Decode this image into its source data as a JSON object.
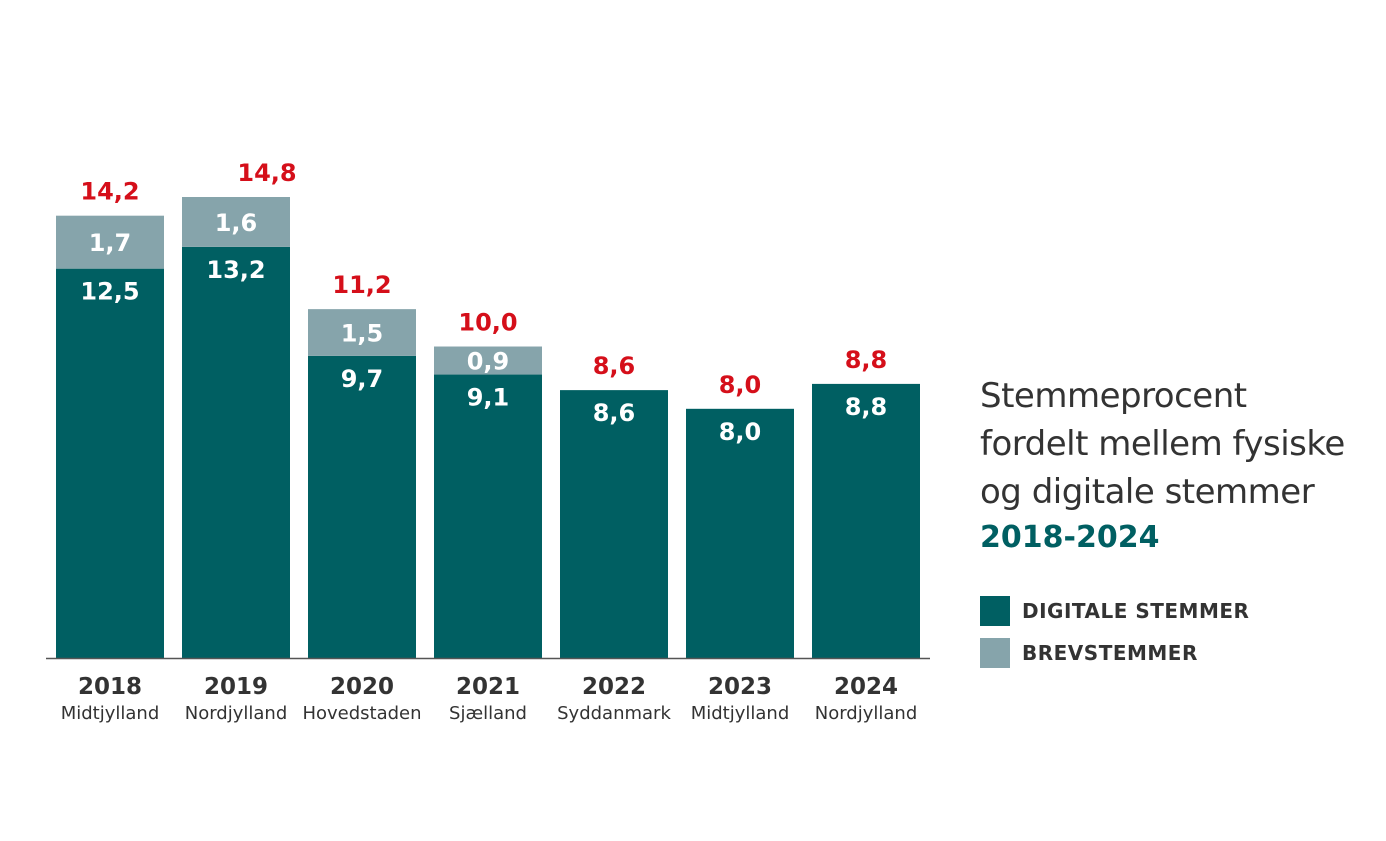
{
  "chart_data": {
    "type": "bar",
    "stacked": true,
    "title": "Stemmeprocent fordelt mellem fysiske og digitale stemmer",
    "title_lines": [
      "Stemmeprocent",
      "fordelt mellem fysiske",
      "og digitale stemmer"
    ],
    "subtitle": "2018-2024",
    "categories": [
      "2018",
      "2019",
      "2020",
      "2021",
      "2022",
      "2023",
      "2024"
    ],
    "category_sublabels": [
      "Midtjylland",
      "Nordjylland",
      "Hovedstaden",
      "Sjælland",
      "Syddanmark",
      "Midtjylland",
      "Nordjylland"
    ],
    "series": [
      {
        "name": "DIGITALE STEMMER",
        "color": "#005f62",
        "values": [
          12.5,
          13.2,
          9.7,
          9.1,
          8.6,
          8.0,
          8.8
        ],
        "labels": [
          "12,5",
          "13,2",
          "9,7",
          "9,1",
          "8,6",
          "8,0",
          "8,8"
        ]
      },
      {
        "name": "BREVSTEMMER",
        "color": "#86a4ab",
        "values": [
          1.7,
          1.6,
          1.5,
          0.9,
          null,
          null,
          null
        ],
        "labels": [
          "1,7",
          "1,6",
          "1,5",
          "0,9",
          "",
          "",
          ""
        ]
      }
    ],
    "totals": [
      14.2,
      14.8,
      11.2,
      10.0,
      8.6,
      8.0,
      8.8
    ],
    "total_labels": [
      "14,2",
      "14,8",
      "11,2",
      "10,0",
      "8,6",
      "8,0",
      "8,8"
    ],
    "total_color": "#d50f1a",
    "ylim": [
      0,
      14.8
    ],
    "grid": false,
    "legend_position": "right"
  }
}
